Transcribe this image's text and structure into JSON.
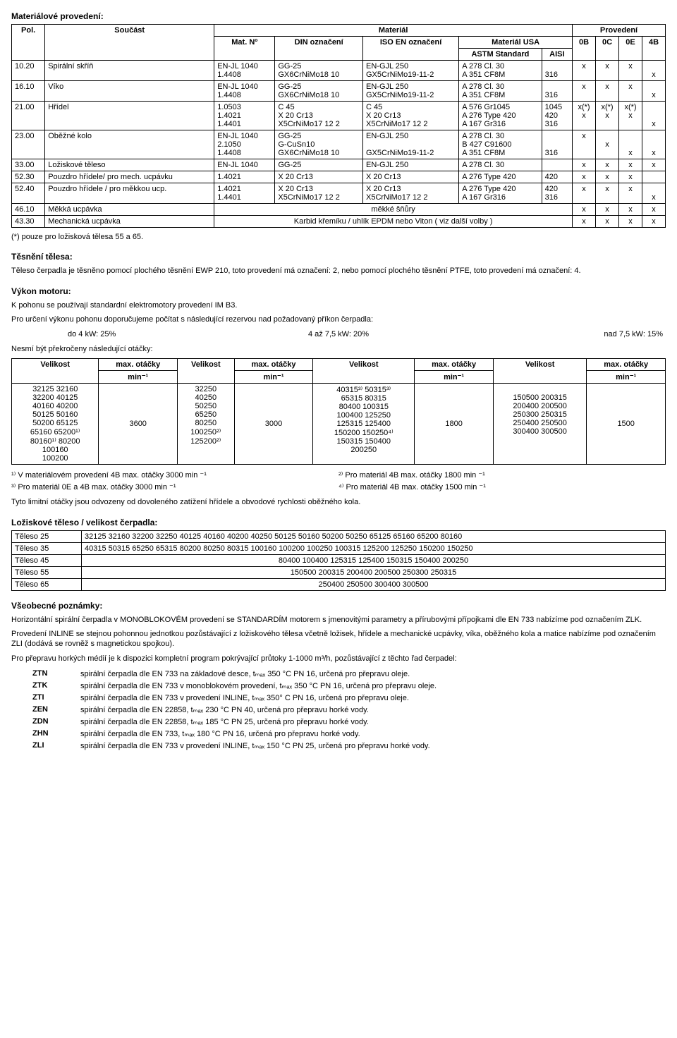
{
  "title_material": "Materiálové provedení:",
  "mat_table": {
    "cols": [
      "Pol.",
      "Součást",
      "Mat. Nº",
      "DIN označení",
      "ISO EN označení",
      "ASTM Standard",
      "AISI",
      "0B",
      "0C",
      "0E",
      "4B"
    ],
    "header_group": {
      "material": "Materiál",
      "usa": "Materiál USA",
      "prov": "Provedení"
    },
    "rows": [
      {
        "pol": "10.20",
        "soucast": "Spirální skříň",
        "matno": "EN-JL 1040\n1.4408",
        "din": "GG-25\nGX6CrNiMo18 10",
        "iso": "EN-GJL 250\nGX5CrNiMo19-11-2",
        "astm": "A 278 Cl. 30\nA 351 CF8M",
        "aisi": "\n316",
        "c0b": "x",
        "c0c": "x",
        "c0e": "x",
        "c4b": "\nx"
      },
      {
        "pol": "16.10",
        "soucast": "Víko",
        "matno": "EN-JL 1040\n1.4408",
        "din": "GG-25\nGX6CrNiMo18 10",
        "iso": "EN-GJL 250\nGX5CrNiMo19-11-2",
        "astm": "A 278 Cl. 30\nA 351 CF8M",
        "aisi": "\n316",
        "c0b": "x",
        "c0c": "x",
        "c0e": "x",
        "c4b": "\nx"
      },
      {
        "pol": "21.00",
        "soucast": "Hřídel",
        "matno": "1.0503\n1.4021\n1.4401",
        "din": "C 45\nX 20 Cr13\nX5CrNiMo17 12 2",
        "iso": "C 45\nX 20 Cr13\nX5CrNiMo17 12 2",
        "astm": "A 576 Gr1045\nA 276 Type 420\nA 167 Gr316",
        "aisi": "1045\n420\n316",
        "c0b": "x(*)\nx",
        "c0c": "x(*)\nx",
        "c0e": "x(*)\nx",
        "c4b": "\n\nx"
      },
      {
        "pol": "23.00",
        "soucast": "Oběžné kolo",
        "matno": "EN-JL 1040\n2.1050\n1.4408",
        "din": "GG-25\nG-CuSn10\nGX6CrNiMo18 10",
        "iso": "EN-GJL 250\n\nGX5CrNiMo19-11-2",
        "astm": "A 278 Cl. 30\nB 427 C91600\nA 351 CF8M",
        "aisi": "\n\n316",
        "c0b": "x",
        "c0c": "\nx",
        "c0e": "\n\nx",
        "c4b": "\n\nx"
      },
      {
        "pol": "33.00",
        "soucast": "Ložiskové těleso",
        "matno": "EN-JL 1040",
        "din": "GG-25",
        "iso": "EN-GJL 250",
        "astm": "A 278 Cl. 30",
        "aisi": "",
        "c0b": "x",
        "c0c": "x",
        "c0e": "x",
        "c4b": "x"
      },
      {
        "pol": "52.30",
        "soucast": "Pouzdro hřídele/ pro mech. ucpávku",
        "matno": "1.4021",
        "din": "X 20 Cr13",
        "iso": "X 20 Cr13",
        "astm": "A 276 Type 420",
        "aisi": "420",
        "c0b": "x",
        "c0c": "x",
        "c0e": "x",
        "c4b": ""
      },
      {
        "pol": "52.40",
        "soucast": "Pouzdro hřídele / pro měkkou ucp.",
        "matno": "1.4021\n1.4401",
        "din": "X 20 Cr13\nX5CrNiMo17 12 2",
        "iso": "X 20 Cr13\nX5CrNiMo17 12 2",
        "astm": "A 276 Type 420\nA 167 Gr316",
        "aisi": "420\n316",
        "c0b": "x",
        "c0c": "x",
        "c0e": "x",
        "c4b": "\nx"
      },
      {
        "pol": "46.10",
        "soucast": "Měkká ucpávka",
        "span": "měkké šňůry",
        "c0b": "x",
        "c0c": "x",
        "c0e": "x",
        "c4b": "x"
      },
      {
        "pol": "43.30",
        "soucast": "Mechanická ucpávka",
        "span": "Karbid křemíku / uhlík EPDM nebo Viton ( viz další volby )",
        "c0b": "x",
        "c0c": "x",
        "c0e": "x",
        "c4b": "x"
      }
    ],
    "footnote": "(*) pouze pro ložisková tělesa 55 a 65."
  },
  "tesneni": {
    "title": "Těsnění tělesa:",
    "p1": "Těleso čerpadla je těsněno pomocí plochého těsnění EWP 210, toto provedení má označení: 2, nebo pomocí plochého těsnění PTFE, toto provedení má označení: 4."
  },
  "vykon": {
    "title": "Výkon motoru:",
    "p1": "K pohonu se používají standardní elektromotory provedení IM B3.",
    "p2": "Pro určení výkonu pohonu doporučujeme počítat s následující rezervou nad požadovaný příkon čerpadla:",
    "a": "do 4 kW: 25%",
    "b": "4 až 7,5 kW: 20%",
    "c": "nad 7,5 kW: 15%",
    "p3": "Nesmí být překročeny následující otáčky:"
  },
  "rpm": {
    "h_size": "Velikost",
    "h_rpm": "max. otáčky",
    "h_unit": "min⁻¹",
    "groups": [
      {
        "sizes": "32125 32160\n32200 40125\n40160 40200\n50125 50160\n50200 65125\n65160 65200¹⁾\n80160¹⁾ 80200\n100160\n100200",
        "rpm": "3600"
      },
      {
        "sizes": "32250\n40250\n50250\n65250\n80250\n100250²⁾\n125200²⁾",
        "rpm": "3000"
      },
      {
        "sizes": "40315³⁾ 50315³⁾\n65315 80315\n80400 100315\n100400 125250\n125315 125400\n150200 150250⁴⁾\n150315 150400\n200250",
        "rpm": "1800"
      },
      {
        "sizes": "\n150500 200315\n200400 200500\n250300 250315\n250400 250500\n300400 300500",
        "rpm": "1500"
      }
    ],
    "fn1": "¹⁾ V materiálovém provedení 4B max. otáčky 3000 min ⁻¹",
    "fn2": "²⁾ Pro materiál 4B max. otáčky 1800 min ⁻¹",
    "fn3": "³⁾ Pro materiál 0E a 4B max. otáčky 3000 min ⁻¹",
    "fn4": "⁴⁾ Pro materiál 4B max. otáčky 1500 min ⁻¹",
    "p_last": "Tyto limitní otáčky jsou odvozeny od dovoleného zatížení hřídele a obvodové rychlosti oběžného kola."
  },
  "lozisko": {
    "title": "Ložiskové těleso / velikost čerpadla:",
    "rows": [
      {
        "t": "Těleso 25",
        "v": "32125 32160 32200 32250 40125 40160 40200 40250 50125 50160 50200 50250 65125 65160 65200 80160"
      },
      {
        "t": "Těleso 35",
        "v": "40315 50315 65250 65315 80200 80250 80315 100160 100200 100250 100315 125200 125250 150200 150250"
      },
      {
        "t": "Těleso 45",
        "v": "80400 100400 125315 125400 150315 150400 200250"
      },
      {
        "t": "Těleso 55",
        "v": "150500 200315 200400 200500 250300 250315"
      },
      {
        "t": "Těleso 65",
        "v": "250400 250500 300400 300500"
      }
    ]
  },
  "poznamky": {
    "title": "Všeobecné poznámky:",
    "p1": "Horizontální spirální čerpadla v MONOBLOKOVÉM provedení se STANDARDÍM motorem s jmenovitými parametry a přírubovými přípojkami dle EN 733 nabízíme pod označením ZLK.",
    "p2": "Provedení INLINE se stejnou pohonnou jednotkou pozůstávající z ložiskového tělesa včetně ložisek, hřídele a mechanické ucpávky, víka, oběžného kola a matice nabízíme pod označením ZLI (dodává se rovněž s magnetickou spojkou).",
    "p3": "Pro přepravu horkých médií je k dispozici kompletní program pokrývající průtoky 1-1000 m³/h, pozůstávající z těchto řad čerpadel:",
    "list": [
      {
        "code": "ZTN",
        "text": "spirální čerpadla dle EN 733 na základové desce, tₘₐₓ 350 °C PN 16, určená pro přepravu oleje."
      },
      {
        "code": "ZTK",
        "text": "spirální čerpadla dle EN 733 v monoblokovém provedení, tₘₐₓ 350 °C PN 16, určená pro přepravu oleje."
      },
      {
        "code": "ZTI",
        "text": "spirální čerpadla dle EN 733 v provedení INLINE, tₘₐₓ 350° C PN 16, určená pro přepravu oleje."
      },
      {
        "code": "ZEN",
        "text": "spirální čerpadla dle EN 22858, tₘₐₓ 230 °C PN 40, určená pro přepravu horké vody."
      },
      {
        "code": "ZDN",
        "text": "spirální čerpadla dle EN 22858, tₘₐₓ 185 °C PN 25, určená pro přepravu horké vody."
      },
      {
        "code": "ZHN",
        "text": "spirální čerpadla dle EN 733, tₘₐₓ 180 °C PN 16, určená pro přepravu horké vody."
      },
      {
        "code": "ZLI",
        "text": "spirální čerpadla dle EN 733 v provedení INLINE, tₘₐₓ 150 °C PN 25, určená pro přepravu horké vody."
      }
    ]
  }
}
